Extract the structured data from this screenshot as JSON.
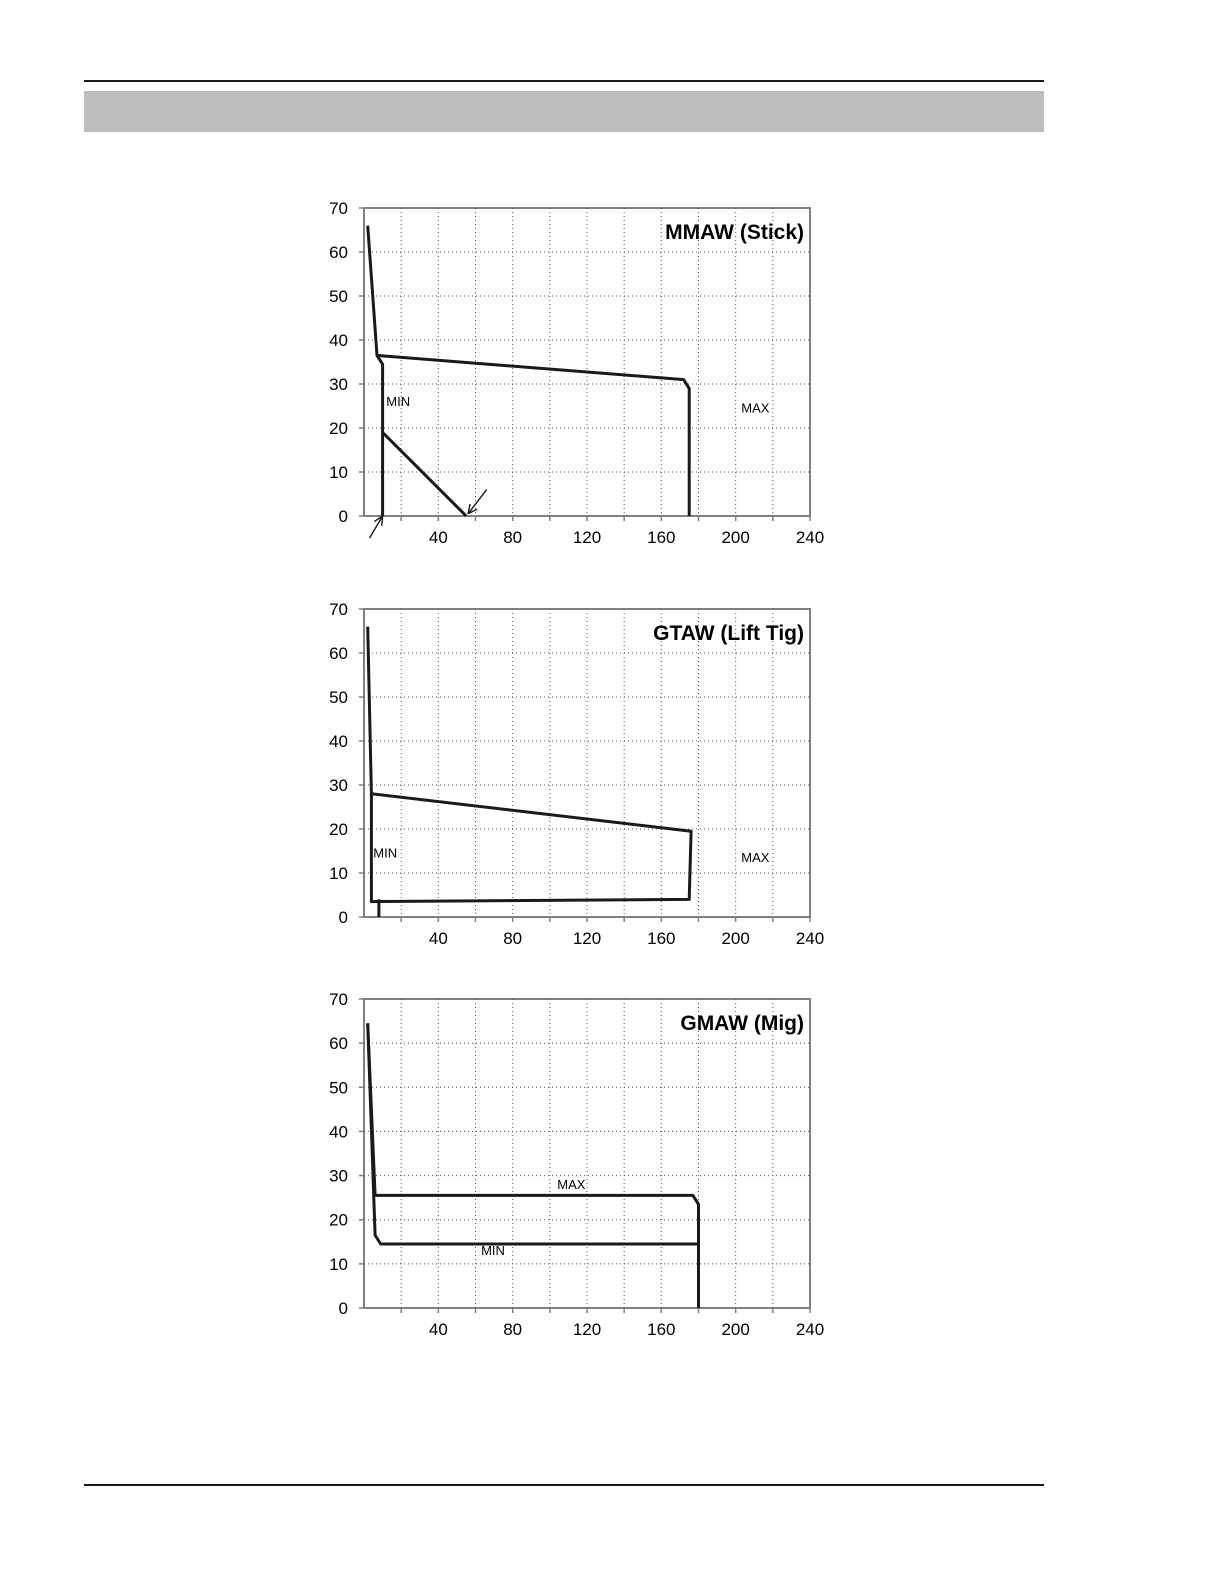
{
  "page": {
    "header_band_color": "#bdbdbd",
    "line_color": "#1a1a1a"
  },
  "chart_data": [
    {
      "type": "line",
      "title": "MMAW (Stick)",
      "xlabel": "",
      "ylabel": "",
      "xlim": [
        0,
        240
      ],
      "ylim": [
        0,
        70
      ],
      "x_ticks": [
        40,
        80,
        120,
        160,
        200,
        240
      ],
      "y_ticks": [
        0,
        10,
        20,
        30,
        40,
        50,
        60,
        70
      ],
      "grid": true,
      "series": [
        {
          "x": [
            2,
            7,
            10,
            10
          ],
          "y": [
            66,
            36.5,
            34.5,
            0
          ]
        },
        {
          "x": [
            7,
            172,
            175,
            175
          ],
          "y": [
            36.5,
            31,
            29,
            0
          ]
        },
        {
          "x": [
            10,
            55
          ],
          "y": [
            19,
            0
          ]
        }
      ],
      "annotations": [
        {
          "text": "MIN",
          "x": 12,
          "y": 25
        },
        {
          "text": "MAX",
          "x": 203,
          "y": 23.5
        }
      ],
      "arrows": [
        {
          "from": [
            3,
            -5
          ],
          "to": [
            10,
            0
          ]
        },
        {
          "from": [
            66,
            6
          ],
          "to": [
            56,
            0.5
          ]
        }
      ]
    },
    {
      "type": "line",
      "title": "GTAW (Lift Tig)",
      "xlabel": "",
      "ylabel": "",
      "xlim": [
        0,
        240
      ],
      "ylim": [
        0,
        70
      ],
      "x_ticks": [
        40,
        80,
        120,
        160,
        200,
        240
      ],
      "y_ticks": [
        0,
        10,
        20,
        30,
        40,
        50,
        60,
        70
      ],
      "grid": true,
      "series": [
        {
          "x": [
            2,
            4,
            4
          ],
          "y": [
            66,
            28,
            20
          ]
        },
        {
          "x": [
            4,
            176,
            175,
            4,
            4
          ],
          "y": [
            28,
            19.5,
            4,
            3.5,
            20
          ]
        },
        {
          "x": [
            8,
            8
          ],
          "y": [
            4,
            0
          ]
        }
      ],
      "annotations": [
        {
          "text": "MIN",
          "x": 5,
          "y": 13.5
        },
        {
          "text": "MAX",
          "x": 203,
          "y": 12.5
        }
      ]
    },
    {
      "type": "line",
      "title": "GMAW (Mig)",
      "xlabel": "",
      "ylabel": "",
      "xlim": [
        0,
        240
      ],
      "ylim": [
        0,
        70
      ],
      "x_ticks": [
        40,
        80,
        120,
        160,
        200,
        240
      ],
      "y_ticks": [
        0,
        10,
        20,
        30,
        40,
        50,
        60,
        70
      ],
      "grid": true,
      "series": [
        {
          "name": "MAX",
          "x": [
            2,
            6,
            177,
            180,
            180
          ],
          "y": [
            64.5,
            25.5,
            25.5,
            23.5,
            0
          ]
        },
        {
          "name": "MIN",
          "x": [
            2,
            6,
            9,
            180
          ],
          "y": [
            64.5,
            16.5,
            14.5,
            14.5
          ]
        }
      ],
      "annotations": [
        {
          "text": "MAX",
          "x": 104,
          "y": 27
        },
        {
          "text": "MIN",
          "x": 63,
          "y": 12
        }
      ]
    }
  ]
}
